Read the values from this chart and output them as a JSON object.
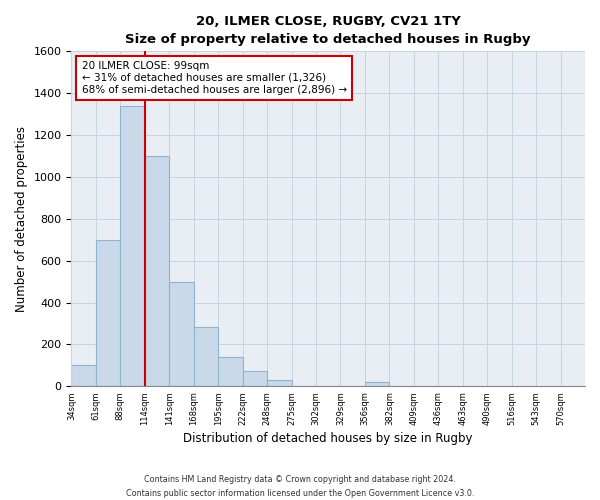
{
  "title": "20, ILMER CLOSE, RUGBY, CV21 1TY",
  "subtitle": "Size of property relative to detached houses in Rugby",
  "xlabel": "Distribution of detached houses by size in Rugby",
  "ylabel": "Number of detached properties",
  "bin_labels": [
    "34sqm",
    "61sqm",
    "88sqm",
    "114sqm",
    "141sqm",
    "168sqm",
    "195sqm",
    "222sqm",
    "248sqm",
    "275sqm",
    "302sqm",
    "329sqm",
    "356sqm",
    "382sqm",
    "409sqm",
    "436sqm",
    "463sqm",
    "490sqm",
    "516sqm",
    "543sqm",
    "570sqm"
  ],
  "bar_values": [
    100,
    700,
    1340,
    1100,
    500,
    285,
    140,
    75,
    30,
    0,
    0,
    0,
    20,
    0,
    0,
    0,
    0,
    0,
    0,
    0,
    0
  ],
  "bar_color": "#c9d9ea",
  "bar_edge_color": "#8fb4d0",
  "property_line_bin_index": 2,
  "property_line_color": "#cc0000",
  "ylim": [
    0,
    1600
  ],
  "yticks": [
    0,
    200,
    400,
    600,
    800,
    1000,
    1200,
    1400,
    1600
  ],
  "annotation_line1": "20 ILMER CLOSE: 99sqm",
  "annotation_line2": "← 31% of detached houses are smaller (1,326)",
  "annotation_line3": "68% of semi-detached houses are larger (2,896) →",
  "annotation_box_color": "#ffffff",
  "annotation_box_edge": "#cc0000",
  "footer_text": "Contains HM Land Registry data © Crown copyright and database right 2024.\nContains public sector information licensed under the Open Government Licence v3.0.",
  "background_color": "#ffffff",
  "grid_color": "#c8d4df",
  "plot_bg_color": "#e8eef4"
}
